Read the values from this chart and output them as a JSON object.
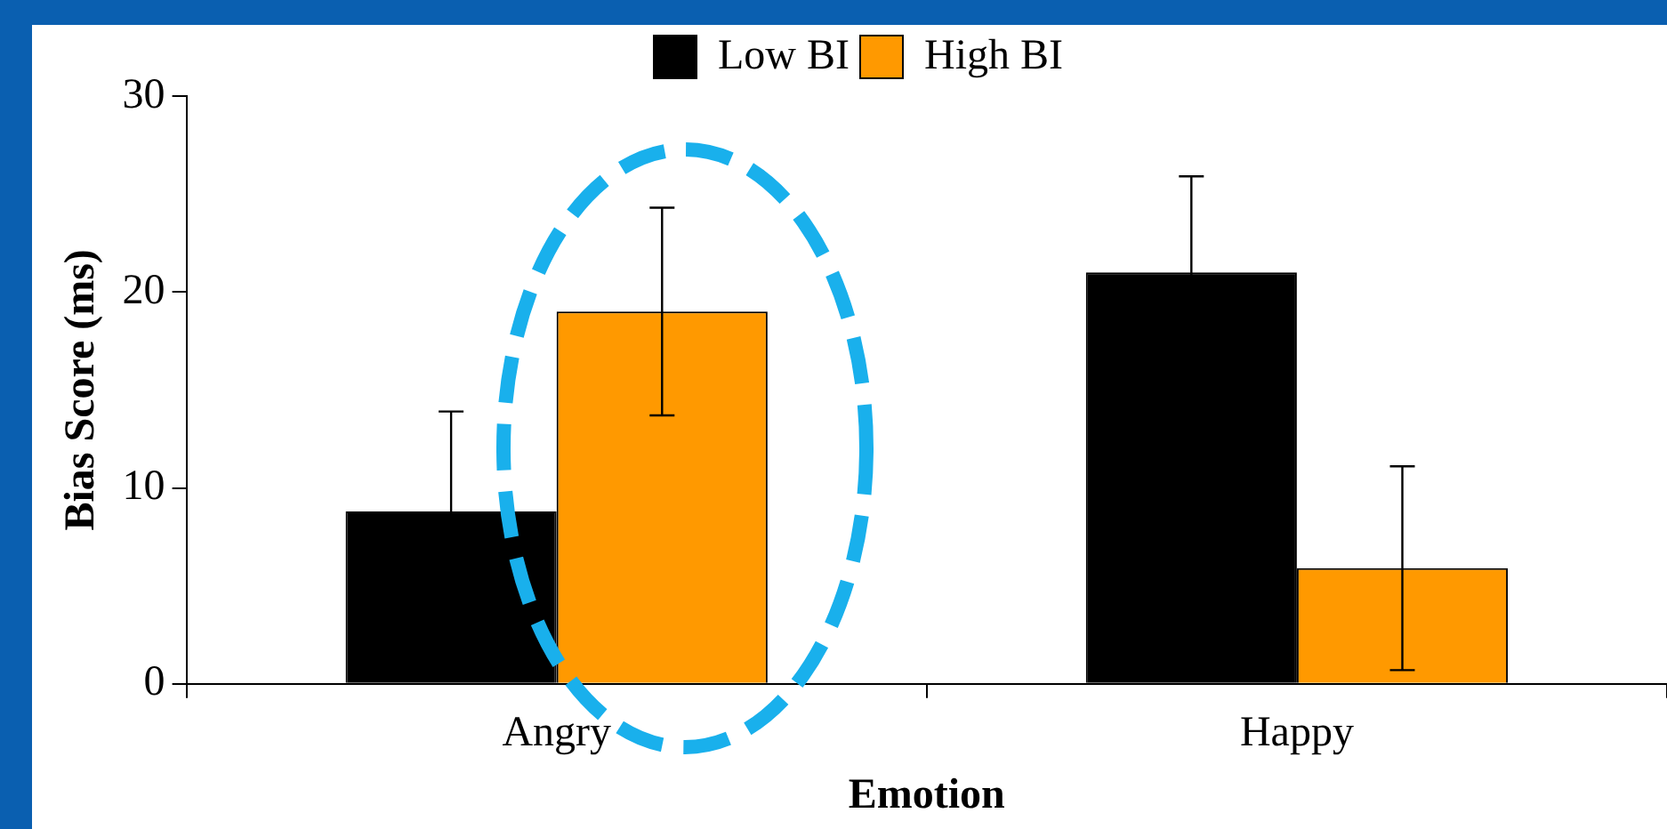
{
  "chart_data": {
    "type": "bar",
    "xlabel": "Emotion",
    "ylabel": "Bias Score (ms)",
    "categories": [
      "Angry",
      "Happy"
    ],
    "series": [
      {
        "name": "Low BI",
        "color": "#000000",
        "values": [
          8.8,
          21.0
        ],
        "errors": [
          5.1,
          4.9
        ]
      },
      {
        "name": "High BI",
        "color": "#ff9900",
        "values": [
          19.0,
          5.9
        ],
        "errors": [
          5.3,
          5.2
        ]
      }
    ],
    "ylim": [
      0,
      30
    ],
    "yticks": [
      0,
      10,
      20,
      30
    ],
    "grid": false,
    "legend": "top"
  }
}
